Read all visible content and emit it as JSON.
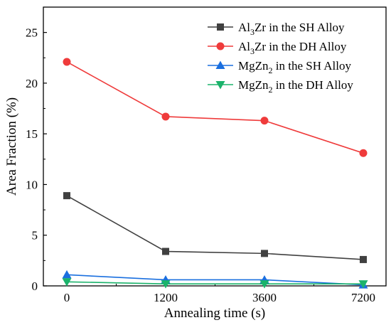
{
  "chart_data": {
    "type": "line",
    "title": "",
    "xlabel": "Annealing time (s)",
    "ylabel": "Area Fraction (%)",
    "categories": [
      "0",
      "1200",
      "3600",
      "7200"
    ],
    "ylim": [
      0,
      27.5
    ],
    "yticks": [
      0,
      5,
      10,
      15,
      20,
      25
    ],
    "grid": false,
    "legend_position": "top-right",
    "series": [
      {
        "name": "Al3Zr in the SH Alloy",
        "legend": {
          "main": "Al",
          "sub": "3",
          "rest": "Zr in the SH Alloy"
        },
        "color": "#404040",
        "marker": "square",
        "values": [
          8.9,
          3.4,
          3.2,
          2.6
        ]
      },
      {
        "name": "Al3Zr in the DH Alloy",
        "legend": {
          "main": "Al",
          "sub": "3",
          "rest": "Zr in the DH Alloy"
        },
        "color": "#ef3b3b",
        "marker": "circle",
        "values": [
          22.1,
          16.7,
          16.3,
          13.1
        ]
      },
      {
        "name": "MgZn2 in the SH Alloy",
        "legend": {
          "main": "MgZn",
          "sub": "2",
          "rest": " in the SH Alloy"
        },
        "color": "#1a6fdf",
        "marker": "triangle-up",
        "values": [
          1.1,
          0.6,
          0.6,
          0.1
        ]
      },
      {
        "name": "MgZn2 in the DH Alloy",
        "legend": {
          "main": "MgZn",
          "sub": "2",
          "rest": " in the DH Alloy"
        },
        "color": "#1bb36b",
        "marker": "triangle-down",
        "values": [
          0.4,
          0.2,
          0.2,
          0.2
        ]
      }
    ]
  }
}
